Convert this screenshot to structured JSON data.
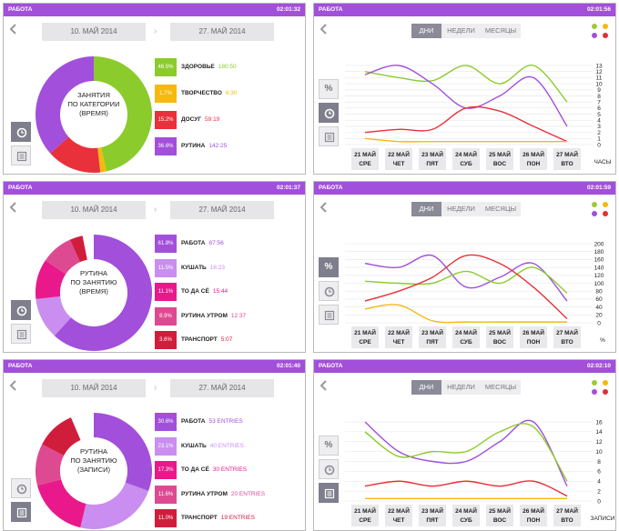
{
  "common": {
    "title": "РАБОТА",
    "date_from": "10. МАЙ 2014",
    "date_to": "27. МАЙ 2014",
    "tabs": [
      "ДНИ",
      "НЕДЕЛИ",
      "МЕСЯЦЫ"
    ],
    "days": [
      {
        "d": "21 МАЙ",
        "w": "СРЕ"
      },
      {
        "d": "22 МАЙ",
        "w": "ЧЕТ"
      },
      {
        "d": "23 МАЙ",
        "w": "ПЯТ"
      },
      {
        "d": "24 МАЙ",
        "w": "СУБ"
      },
      {
        "d": "25 МАЙ",
        "w": "ВОС"
      },
      {
        "d": "26 МАЙ",
        "w": "ПОН"
      },
      {
        "d": "27 МАЙ",
        "w": "ВТО"
      }
    ],
    "dot_colors": [
      "#9ec93a",
      "#f5b90f",
      "#a24fdb",
      "#e0303a"
    ]
  },
  "pies": [
    {
      "time": "02:01:32",
      "center": [
        "ЗАНЯТИЯ",
        "ПО КАТЕГОРИИ",
        "(ВРЕМЯ)"
      ],
      "active_view": 1,
      "items": [
        {
          "pct": "46.5%",
          "label": "ЗДОРОВЬЕ",
          "value": "180:50",
          "color": "#8ccb2c",
          "share": 46.5
        },
        {
          "pct": "1.7%",
          "label": "ТВОРЧЕСТВО",
          "value": "6:30",
          "color": "#f5b90f",
          "share": 1.7
        },
        {
          "pct": "15.2%",
          "label": "ДОСУГ",
          "value": "59:19",
          "color": "#e8313a",
          "share": 15.2
        },
        {
          "pct": "36.6%",
          "label": "РУТИНА",
          "value": "142:25",
          "color": "#a24fdb",
          "share": 36.6
        }
      ]
    },
    {
      "time": "02:01:37",
      "center": [
        "РУТИНА",
        "ПО ЗАНЯТИЮ",
        "(ВРЕМЯ)"
      ],
      "active_view": 1,
      "items": [
        {
          "pct": "61.8%",
          "label": "РАБОТА",
          "value": "87:56",
          "color": "#a24fdb",
          "share": 61.8
        },
        {
          "pct": "11.5%",
          "label": "КУШАТЬ",
          "value": "16:23",
          "color": "#c98ef0",
          "share": 11.5
        },
        {
          "pct": "11.1%",
          "label": "ТО ДА СЁ",
          "value": "15:44",
          "color": "#e9198b",
          "share": 11.1
        },
        {
          "pct": "8.9%",
          "label": "РУТИНА УТРОМ",
          "value": "12:37",
          "color": "#dd4a92",
          "share": 8.9
        },
        {
          "pct": "3.6%",
          "label": "ТРАНСПОРТ",
          "value": "5:07",
          "color": "#d11d3c",
          "share": 3.6
        }
      ]
    },
    {
      "time": "02:01:40",
      "center": [
        "РУТИНА",
        "ПО ЗАНЯТИЮ",
        "(ЗАПИСИ)"
      ],
      "active_view": 2,
      "items": [
        {
          "pct": "30.6%",
          "label": "РАБОТА",
          "value": "53 ENTRIES",
          "color": "#a24fdb",
          "share": 30.6
        },
        {
          "pct": "23.1%",
          "label": "КУШАТЬ",
          "value": "40 ENTRIES",
          "color": "#c98ef0",
          "share": 23.1
        },
        {
          "pct": "17.3%",
          "label": "ТО ДА СЁ",
          "value": "30 ENTRIES",
          "color": "#e9198b",
          "share": 17.3
        },
        {
          "pct": "11.6%",
          "label": "РУТИНА УТРОМ",
          "value": "20 ENTRIES",
          "color": "#dd4a92",
          "share": 11.6
        },
        {
          "pct": "11.0%",
          "label": "ТРАНСПОРТ",
          "value": "19 ENTRIES",
          "color": "#d11d3c",
          "share": 11.0
        }
      ]
    }
  ],
  "lines": [
    {
      "time": "02:01:56",
      "active_view": 1,
      "chart_data": {
        "type": "line",
        "ylabel": "ЧАСЫ",
        "yticks": [
          "0",
          "1",
          "2",
          "3",
          "4",
          "5",
          "6",
          "7",
          "8",
          "9",
          "10",
          "11",
          "12",
          "13"
        ],
        "ylim": [
          0,
          13
        ],
        "series": [
          {
            "color": "#8ccb2c",
            "values": [
              12,
              11,
              10.5,
              13,
              10,
              13,
              7
            ]
          },
          {
            "color": "#a24fdb",
            "values": [
              11.5,
              13,
              10,
              6,
              8,
              11,
              3
            ]
          },
          {
            "color": "#e8313a",
            "values": [
              2,
              2.5,
              2.5,
              6,
              5.5,
              3,
              0.5
            ]
          },
          {
            "color": "#f5b90f",
            "values": [
              1,
              0.5,
              0.5,
              0.5,
              0.5,
              0.5,
              0.5
            ]
          }
        ]
      }
    },
    {
      "time": "02:01:59",
      "active_view": 0,
      "chart_data": {
        "type": "line",
        "ylabel": "%",
        "yticks": [
          "0",
          "20",
          "40",
          "60",
          "80",
          "100",
          "120",
          "140",
          "160",
          "180",
          "200"
        ],
        "ylim": [
          0,
          200
        ],
        "series": [
          {
            "color": "#a24fdb",
            "values": [
              150,
              140,
              170,
              90,
              115,
              150,
              55
            ]
          },
          {
            "color": "#8ccb2c",
            "values": [
              105,
              100,
              100,
              130,
              100,
              140,
              75
            ]
          },
          {
            "color": "#e8313a",
            "values": [
              55,
              80,
              115,
              170,
              150,
              90,
              10
            ]
          },
          {
            "color": "#f5b90f",
            "values": [
              35,
              45,
              5,
              2,
              2,
              2,
              2
            ]
          }
        ]
      }
    },
    {
      "time": "02:02:10",
      "active_view": 2,
      "chart_data": {
        "type": "line",
        "ylabel": "ЗАПИСИ",
        "yticks": [
          "0",
          "2",
          "4",
          "6",
          "8",
          "10",
          "12",
          "14",
          "16"
        ],
        "ylim": [
          0,
          16
        ],
        "series": [
          {
            "color": "#a24fdb",
            "values": [
              16,
              10,
              8,
              8,
              12,
              16,
              3
            ]
          },
          {
            "color": "#8ccb2c",
            "values": [
              14,
              9,
              10,
              10,
              14,
              15,
              4
            ]
          },
          {
            "color": "#e8313a",
            "values": [
              3,
              4,
              3,
              4,
              3,
              4,
              1
            ]
          },
          {
            "color": "#f5b90f",
            "values": [
              0.5,
              0.5,
              0.5,
              0.5,
              0.5,
              0.5,
              0.5
            ]
          }
        ]
      }
    }
  ]
}
